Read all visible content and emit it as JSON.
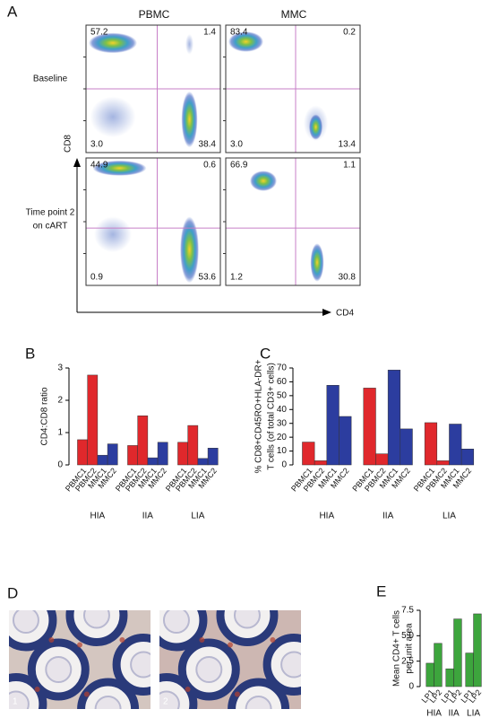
{
  "panels": {
    "A": {
      "letter": "A",
      "columns": [
        "PBMC",
        "MMC"
      ],
      "rows": [
        [
          "Baseline"
        ],
        [
          "Time point 2",
          "on cART"
        ]
      ],
      "y_axis": "CD8",
      "x_axis": "CD4",
      "plots": [
        {
          "quadrants": [
            "57.2",
            "1.4",
            "3.0",
            "38.4"
          ]
        },
        {
          "quadrants": [
            "83.4",
            "0.2",
            "3.0",
            "13.4"
          ]
        },
        {
          "quadrants": [
            "44.9",
            "0.6",
            "0.9",
            "53.6"
          ]
        },
        {
          "quadrants": [
            "66.9",
            "1.1",
            "1.2",
            "30.8"
          ]
        }
      ]
    },
    "D": {
      "letter": "D",
      "images": [
        "1",
        "2"
      ]
    }
  },
  "chart_data": [
    {
      "type": "bar",
      "panel_label": "B",
      "ylabel": [
        "CD4:CD8 ratio"
      ],
      "categories": [
        "PBMC1",
        "PBMC2",
        "MMC1",
        "MMC2"
      ],
      "colors": [
        "#e0282c",
        "#e0282c",
        "#2c3d9f",
        "#2c3d9f"
      ],
      "groups": [
        {
          "name": "HIA",
          "values": [
            0.78,
            2.78,
            0.3,
            0.65
          ]
        },
        {
          "name": "IIA",
          "values": [
            0.6,
            1.52,
            0.22,
            0.7
          ]
        },
        {
          "name": "LIA",
          "values": [
            0.7,
            1.22,
            0.2,
            0.52
          ]
        }
      ],
      "ylim": [
        0,
        3
      ],
      "yticks": [
        0,
        1,
        2,
        3
      ]
    },
    {
      "type": "bar",
      "panel_label": "C",
      "ylabel": [
        "% CD8+CD45RO+HLA-DR+",
        "T cells (of total CD3+ cells)"
      ],
      "categories": [
        "PBMC1",
        "PBMC2",
        "MMC1",
        "MMC2"
      ],
      "colors": [
        "#e0282c",
        "#e0282c",
        "#2c3d9f",
        "#2c3d9f"
      ],
      "groups": [
        {
          "name": "HIA",
          "values": [
            16.5,
            3,
            57.5,
            35
          ]
        },
        {
          "name": "IIA",
          "values": [
            55.5,
            8,
            68.5,
            26
          ]
        },
        {
          "name": "LIA",
          "values": [
            30.5,
            3,
            29.5,
            11.5
          ]
        }
      ],
      "ylim": [
        0,
        70
      ],
      "yticks": [
        0,
        10,
        20,
        30,
        40,
        50,
        60,
        70
      ]
    },
    {
      "type": "bar",
      "panel_label": "E",
      "ylabel": [
        "Mean CD4+ T cells",
        "per unit area"
      ],
      "categories": [
        "LP1",
        "LP2"
      ],
      "colors": [
        "#3da53d",
        "#3da53d"
      ],
      "groups": [
        {
          "name": "HIA",
          "values": [
            2.3,
            4.25
          ]
        },
        {
          "name": "IIA",
          "values": [
            1.75,
            6.65
          ]
        },
        {
          "name": "LIA",
          "values": [
            3.3,
            7.15
          ]
        }
      ],
      "ylim": [
        0,
        7.5
      ],
      "yticks": [
        0,
        2.5,
        {
          "value": 5,
          "label": "5.0"
        },
        7.5
      ]
    }
  ]
}
